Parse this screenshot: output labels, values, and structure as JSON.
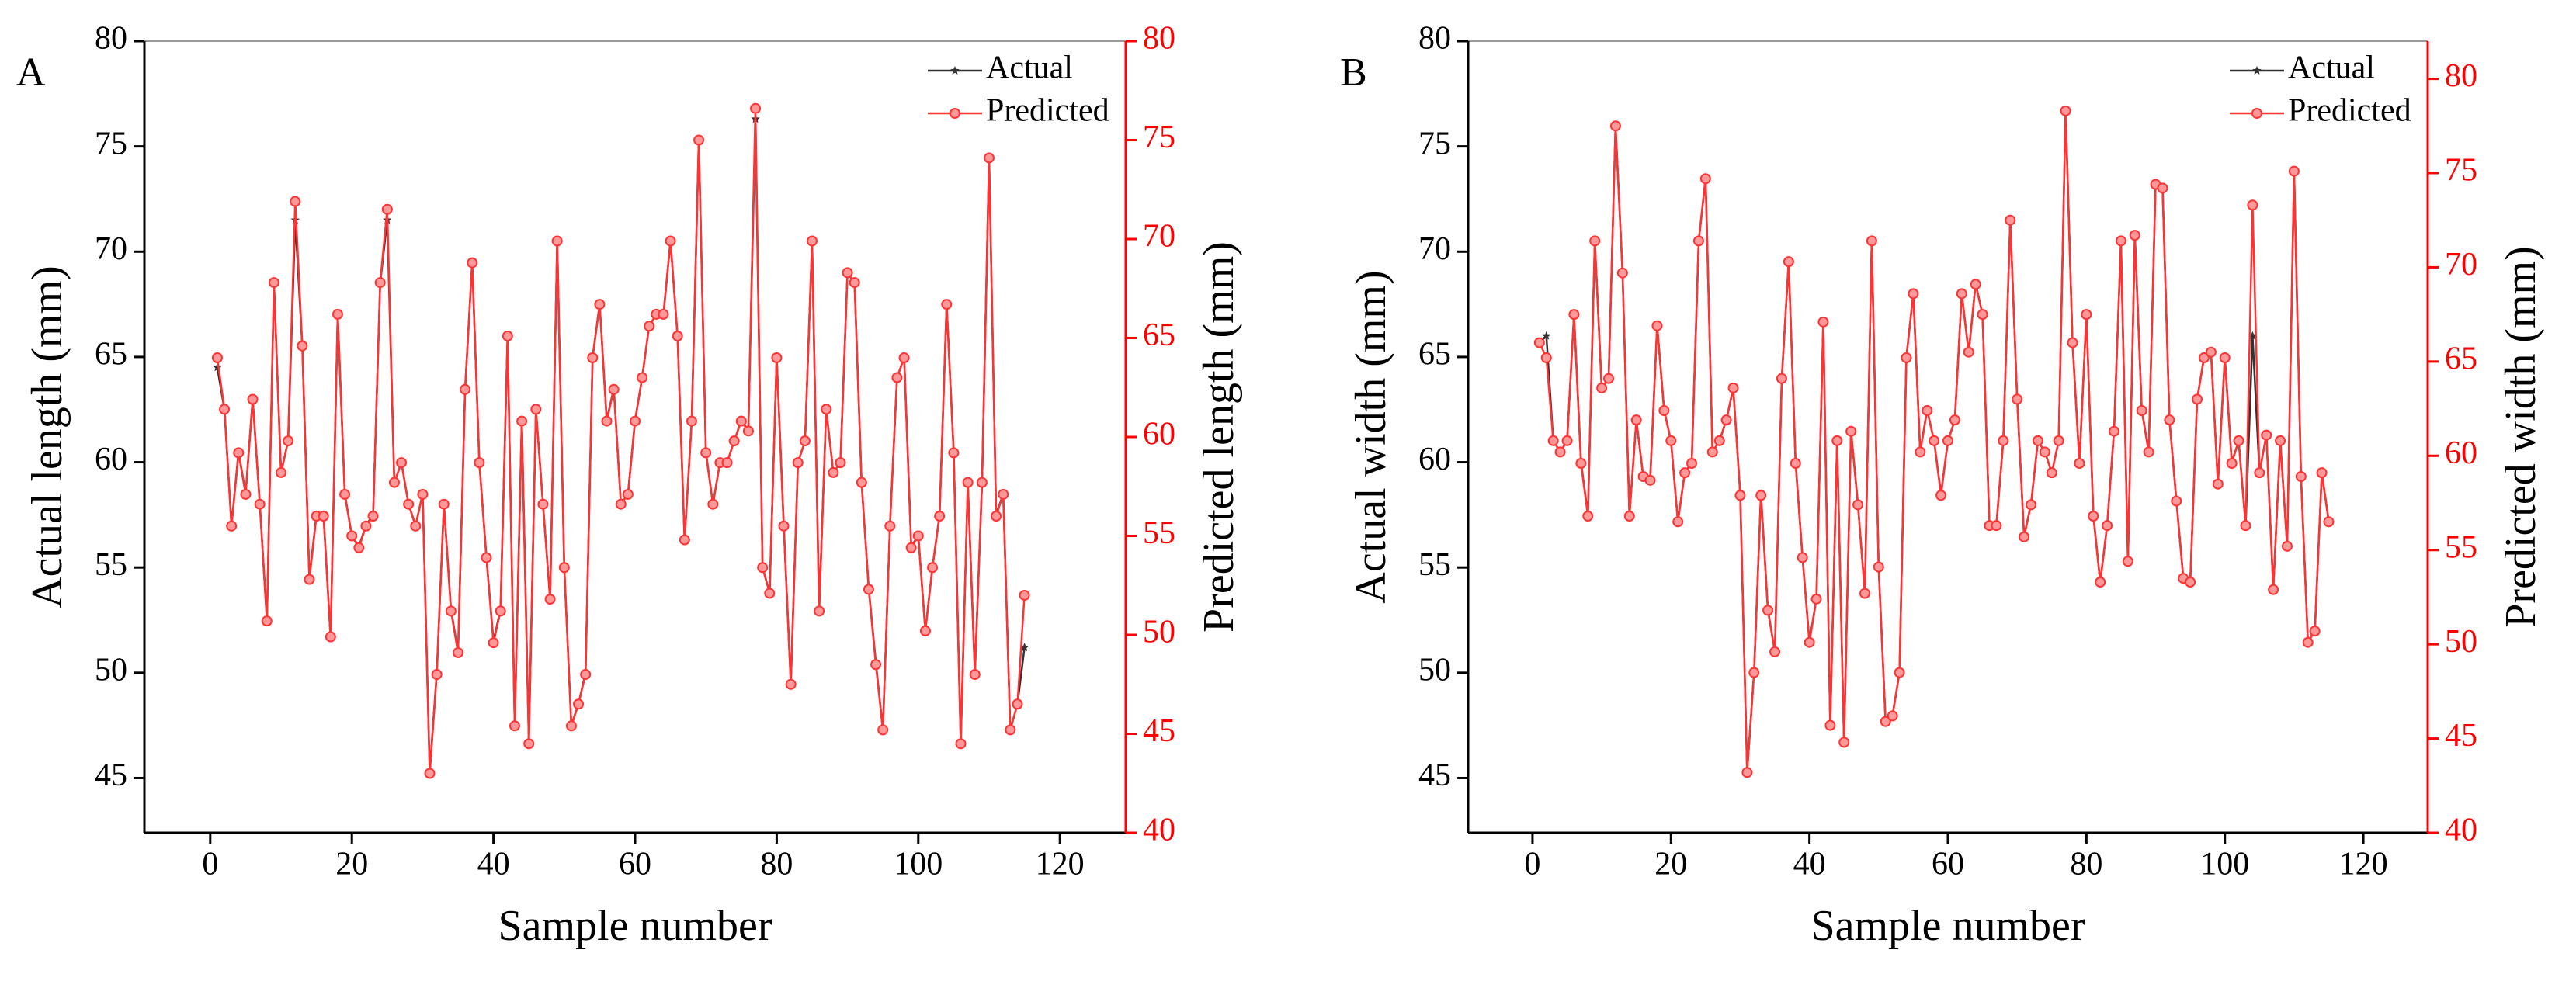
{
  "chart_data": [
    {
      "type": "line",
      "label": "A",
      "xlabel": "Sample number",
      "ylabel": "Actual length (mm)",
      "y2label": "Predicted length (mm)",
      "legend": "upper right",
      "xlim": [
        -9.3,
        129.3
      ],
      "xticks": [
        0,
        20,
        40,
        60,
        80,
        100,
        120
      ],
      "ylim": [
        42.4,
        80
      ],
      "yticks": [
        45,
        50,
        55,
        60,
        65,
        70,
        75,
        80
      ],
      "y2lim": [
        40,
        80
      ],
      "y2ticks": [
        40,
        45,
        50,
        55,
        60,
        65,
        70,
        75,
        80
      ],
      "y2color": "#ff0000",
      "x": [
        1,
        2,
        3,
        4,
        5,
        6,
        7,
        8,
        9,
        10,
        11,
        12,
        13,
        14,
        15,
        16,
        17,
        18,
        19,
        20,
        21,
        22,
        23,
        24,
        25,
        26,
        27,
        28,
        29,
        30,
        31,
        32,
        33,
        34,
        35,
        36,
        37,
        38,
        39,
        40,
        41,
        42,
        43,
        44,
        45,
        46,
        47,
        48,
        49,
        50,
        51,
        52,
        53,
        54,
        55,
        56,
        57,
        58,
        59,
        60,
        61,
        62,
        63,
        64,
        65,
        66,
        67,
        68,
        69,
        70,
        71,
        72,
        73,
        74,
        75,
        76,
        77,
        78,
        79,
        80,
        81,
        82,
        83,
        84,
        85,
        86,
        87,
        88,
        89,
        90,
        91,
        92,
        93,
        94,
        95,
        96,
        97,
        98,
        99,
        100,
        101,
        102,
        103,
        104,
        105,
        106,
        107,
        108,
        109,
        110,
        111,
        112,
        113,
        114,
        115
      ],
      "series": [
        {
          "name": "Actual",
          "color": "#333333",
          "marker": "star",
          "values": [
            64.5,
            62.5,
            57,
            60.5,
            58.5,
            63,
            58,
            52.5,
            68.5,
            59.5,
            61,
            71.5,
            65.5,
            54.5,
            57.5,
            57.5,
            51.7,
            67,
            58.5,
            56.5,
            56,
            57,
            57.5,
            68.5,
            71.5,
            59,
            60,
            58,
            57,
            58.5,
            45.3,
            50,
            58,
            53,
            51,
            63.5,
            69.5,
            60,
            55.5,
            51.5,
            53,
            66,
            47.5,
            62,
            46.7,
            62.5,
            58,
            53.5,
            70.5,
            55,
            47.5,
            48.5,
            50,
            65,
            67.5,
            62,
            63.5,
            58,
            58.5,
            62,
            64,
            66.5,
            67,
            67,
            70.5,
            66,
            56.3,
            62,
            75.3,
            60.5,
            58,
            60,
            60,
            61,
            62,
            61.5,
            76.3,
            55,
            53.8,
            65,
            57,
            49.5,
            60,
            61,
            70.5,
            53,
            62.5,
            59.5,
            60,
            69,
            68.5,
            59,
            54,
            50.5,
            47.3,
            57,
            64,
            65,
            56,
            56.5,
            52,
            55,
            57.5,
            67.5,
            60.5,
            46.7,
            59,
            50,
            59,
            74.5,
            57.5,
            58.5,
            47.3,
            48.5,
            51.2
          ]
        },
        {
          "name": "Predicted",
          "color": "#ff3333",
          "marker": "circle",
          "axis": "y2",
          "values": [
            64,
            61.4,
            55.5,
            59.2,
            57.1,
            61.9,
            56.6,
            50.7,
            67.8,
            58.2,
            59.8,
            71.9,
            64.6,
            52.8,
            56,
            56,
            49.9,
            66.2,
            57.1,
            55,
            54.4,
            55.5,
            56,
            67.8,
            71.5,
            57.7,
            58.7,
            56.6,
            55.5,
            57.1,
            43,
            48,
            56.6,
            51.2,
            49.1,
            62.4,
            68.8,
            58.7,
            53.9,
            49.6,
            51.2,
            65.1,
            45.4,
            60.8,
            44.5,
            61.4,
            56.6,
            51.8,
            69.9,
            53.4,
            45.4,
            46.5,
            48,
            64,
            66.7,
            60.8,
            62.4,
            56.6,
            57.1,
            60.8,
            63,
            65.6,
            66.2,
            66.2,
            69.9,
            65.1,
            54.8,
            60.8,
            75,
            59.2,
            56.6,
            58.7,
            58.7,
            59.8,
            60.8,
            60.3,
            76.6,
            53.4,
            52.1,
            64,
            55.5,
            47.5,
            58.7,
            59.8,
            69.9,
            51.2,
            61.4,
            58.2,
            58.7,
            68.3,
            67.8,
            57.7,
            52.3,
            48.5,
            45.2,
            55.5,
            63,
            64,
            54.4,
            55,
            50.2,
            53.4,
            56,
            66.7,
            59.2,
            44.5,
            57.7,
            48,
            57.7,
            74.1,
            56,
            57.1,
            45.2,
            46.5,
            52
          ]
        }
      ]
    },
    {
      "type": "line",
      "label": "B",
      "xlabel": "Sample number",
      "ylabel": "Actual width (mm)",
      "y2label": "Predicted width (mm)",
      "legend": "upper right",
      "xlim": [
        -9.3,
        129.3
      ],
      "xticks": [
        0,
        20,
        40,
        60,
        80,
        100,
        120
      ],
      "ylim": [
        42.4,
        80
      ],
      "yticks": [
        45,
        50,
        55,
        60,
        65,
        70,
        75,
        80
      ],
      "y2lim": [
        40,
        82
      ],
      "y2ticks": [
        40,
        45,
        50,
        55,
        60,
        65,
        70,
        75,
        80
      ],
      "y2color": "#ff0000",
      "x": [
        1,
        2,
        3,
        4,
        5,
        6,
        7,
        8,
        9,
        10,
        11,
        12,
        13,
        14,
        15,
        16,
        17,
        18,
        19,
        20,
        21,
        22,
        23,
        24,
        25,
        26,
        27,
        28,
        29,
        30,
        31,
        32,
        33,
        34,
        35,
        36,
        37,
        38,
        39,
        40,
        41,
        42,
        43,
        44,
        45,
        46,
        47,
        48,
        49,
        50,
        51,
        52,
        53,
        54,
        55,
        56,
        57,
        58,
        59,
        60,
        61,
        62,
        63,
        64,
        65,
        66,
        67,
        68,
        69,
        70,
        71,
        72,
        73,
        74,
        75,
        76,
        77,
        78,
        79,
        80,
        81,
        82,
        83,
        84,
        85,
        86,
        87,
        88,
        89,
        90,
        91,
        92,
        93,
        94,
        95,
        96,
        97,
        98,
        99,
        100,
        101,
        102,
        103,
        104,
        105,
        106,
        107,
        108,
        109,
        110,
        111,
        112,
        113,
        114,
        115
      ],
      "series": [
        {
          "name": "Actual",
          "color": "#333333",
          "marker": "star",
          "values": [
            65.7,
            66,
            61,
            60.5,
            61,
            67,
            60,
            57.5,
            70.5,
            63.5,
            64,
            76,
            69,
            57.5,
            62,
            59.3,
            59.2,
            66.5,
            62.5,
            61,
            57.2,
            59.5,
            60,
            70.5,
            73.5,
            60.5,
            61,
            62,
            63.5,
            58.5,
            45.3,
            50,
            58.5,
            53,
            51,
            64,
            69.5,
            60,
            55.5,
            51.5,
            53.5,
            66.7,
            47.5,
            61,
            46.7,
            61.5,
            58,
            53.8,
            70.5,
            55,
            47.7,
            48,
            50,
            65,
            68,
            60.5,
            62.5,
            61,
            58.5,
            61,
            62,
            68,
            65.2,
            68.5,
            67,
            57,
            57,
            61,
            71.5,
            63,
            56.5,
            58,
            61,
            60.5,
            59.5,
            61,
            76.7,
            65.7,
            60,
            67,
            57.5,
            54.3,
            57,
            61.5,
            70.5,
            55.3,
            70.8,
            62.5,
            60.5,
            73.2,
            73,
            62,
            58.2,
            54.5,
            54.3,
            63,
            65,
            65.2,
            59,
            65,
            60,
            61,
            57,
            66,
            59.5,
            61.3,
            54,
            61,
            56,
            73.8,
            59.3,
            51.5,
            52,
            59.5,
            57.2
          ]
        },
        {
          "name": "Predicted",
          "color": "#ff3333",
          "marker": "circle",
          "axis": "y2",
          "values": [
            66,
            65.2,
            60.8,
            60.2,
            60.8,
            67.5,
            59.6,
            56.8,
            71.4,
            63.6,
            64.1,
            77.5,
            69.7,
            56.8,
            61.9,
            58.9,
            58.7,
            66.9,
            62.4,
            60.8,
            56.5,
            59.1,
            59.6,
            71.4,
            74.7,
            60.2,
            60.8,
            61.9,
            63.6,
            57.9,
            43.2,
            48.5,
            57.9,
            51.8,
            49.6,
            64.1,
            70.3,
            59.6,
            54.6,
            50.1,
            52.4,
            67.1,
            45.7,
            60.8,
            44.8,
            61.3,
            57.4,
            52.7,
            71.4,
            54.1,
            45.9,
            46.2,
            48.5,
            65.2,
            68.6,
            60.2,
            62.4,
            60.8,
            57.9,
            60.8,
            61.9,
            68.6,
            65.5,
            69.1,
            67.5,
            56.3,
            56.3,
            60.8,
            72.5,
            63,
            55.7,
            57.4,
            60.8,
            60.2,
            59.1,
            60.8,
            78.3,
            66,
            59.6,
            67.5,
            56.8,
            53.3,
            56.3,
            61.3,
            71.4,
            54.4,
            71.7,
            62.4,
            60.2,
            74.4,
            74.2,
            61.9,
            57.6,
            53.5,
            53.3,
            63,
            65.2,
            65.5,
            58.5,
            65.2,
            59.6,
            60.8,
            56.3,
            73.3,
            59.1,
            61.1,
            52.9,
            60.8,
            55.2,
            75.1,
            58.9,
            50.1,
            50.7,
            59.1,
            56.5
          ]
        }
      ]
    }
  ]
}
